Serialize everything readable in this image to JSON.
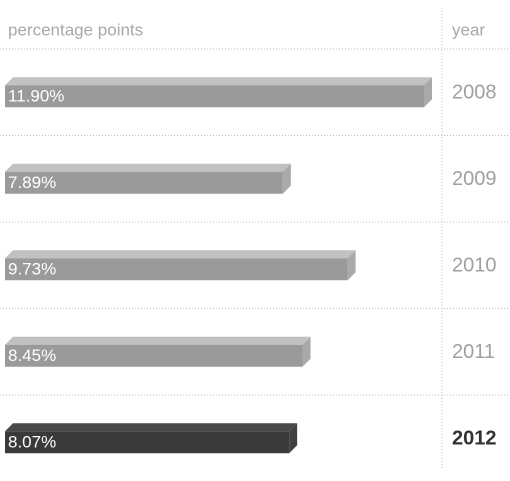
{
  "chart_data": {
    "type": "bar3d",
    "orientation": "horizontal",
    "x_label": "percentage points",
    "y_label": "year",
    "categories": [
      "2008",
      "2009",
      "2010",
      "2011",
      "2012"
    ],
    "values": [
      11.9,
      7.89,
      9.73,
      8.45,
      8.07
    ],
    "value_labels": [
      "11.90%",
      "7.89%",
      "9.73%",
      "8.45%",
      "8.07%"
    ],
    "colors": [
      "#9a9a9a",
      "#9a9a9a",
      "#9a9a9a",
      "#9a9a9a",
      "#3a3a3a"
    ],
    "highlight_index": 4
  }
}
